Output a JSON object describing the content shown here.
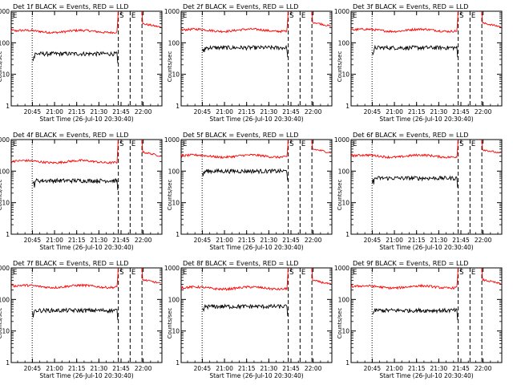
{
  "chart_data": [
    {
      "type": "line",
      "title": "Det 1f BLACK = Events, RED = LLD",
      "xlabel": "Start Time (26-Jul-10 20:30:40)",
      "ylabel": "Counts/sec",
      "ylim": [
        1,
        1000
      ],
      "y_scale": "log",
      "x_tick_labels": [
        "20:45",
        "21:00",
        "21:15",
        "21:30",
        "21:45",
        "22:00"
      ],
      "y_tick_labels": [
        "1",
        "10",
        "100",
        "1000"
      ],
      "markers": [
        "E",
        "S",
        "E"
      ],
      "series": [
        {
          "name": "LLD",
          "color": "#ff0000",
          "level": 230,
          "tail": [
            400,
            310
          ]
        },
        {
          "name": "Events",
          "color": "#000000",
          "level": 45
        }
      ]
    },
    {
      "type": "line",
      "title": "Det 2f BLACK = Events, RED = LLD",
      "xlabel": "Start Time (26-Jul-10 20:30:40)",
      "ylabel": "Counts/sec",
      "ylim": [
        1,
        1000
      ],
      "y_scale": "log",
      "x_tick_labels": [
        "20:45",
        "21:00",
        "21:15",
        "21:30",
        "21:45",
        "22:00"
      ],
      "y_tick_labels": [
        "1",
        "10",
        "100",
        "1000"
      ],
      "markers": [
        "E",
        "S",
        "E"
      ],
      "series": [
        {
          "name": "LLD",
          "color": "#ff0000",
          "level": 250,
          "tail": [
            450,
            330
          ]
        },
        {
          "name": "Events",
          "color": "#000000",
          "level": 70
        }
      ]
    },
    {
      "type": "line",
      "title": "Det 3f BLACK = Events, RED = LLD",
      "xlabel": "Start Time (26-Jul-10 20:30:40)",
      "ylabel": "Counts/sec",
      "ylim": [
        1,
        1000
      ],
      "y_scale": "log",
      "x_tick_labels": [
        "20:45",
        "21:00",
        "21:15",
        "21:30",
        "21:45",
        "22:00"
      ],
      "y_tick_labels": [
        "1",
        "10",
        "100",
        "1000"
      ],
      "markers": [
        "E",
        "S",
        "E"
      ],
      "series": [
        {
          "name": "LLD",
          "color": "#ff0000",
          "level": 250,
          "tail": [
            420,
            320
          ]
        },
        {
          "name": "Events",
          "color": "#000000",
          "level": 70
        }
      ]
    },
    {
      "type": "line",
      "title": "Det 4f BLACK = Events, RED = LLD",
      "xlabel": "Start Time (26-Jul-10 20:30:40)",
      "ylabel": "Counts/sec",
      "ylim": [
        1,
        1000
      ],
      "y_scale": "log",
      "x_tick_labels": [
        "20:45",
        "21:00",
        "21:15",
        "21:30",
        "21:45",
        "22:00"
      ],
      "y_tick_labels": [
        "1",
        "10",
        "100",
        "1000"
      ],
      "markers": [
        "E",
        "S",
        "E"
      ],
      "series": [
        {
          "name": "LLD",
          "color": "#ff0000",
          "level": 200,
          "tail": [
            400,
            300
          ]
        },
        {
          "name": "Events",
          "color": "#000000",
          "level": 50
        }
      ]
    },
    {
      "type": "line",
      "title": "Det 5f BLACK = Events, RED = LLD",
      "xlabel": "Start Time (26-Jul-10 20:30:40)",
      "ylabel": "Counts/sec",
      "ylim": [
        1,
        1000
      ],
      "y_scale": "log",
      "x_tick_labels": [
        "20:45",
        "21:00",
        "21:15",
        "21:30",
        "21:45",
        "22:00"
      ],
      "y_tick_labels": [
        "1",
        "10",
        "100",
        "1000"
      ],
      "markers": [
        "E",
        "S",
        "E"
      ],
      "series": [
        {
          "name": "LLD",
          "color": "#ff0000",
          "level": 300,
          "tail": [
            500,
            380
          ]
        },
        {
          "name": "Events",
          "color": "#000000",
          "level": 100
        }
      ]
    },
    {
      "type": "line",
      "title": "Det 6f BLACK = Events, RED = LLD",
      "xlabel": "Start Time (26-Jul-10 20:30:40)",
      "ylabel": "Counts/sec",
      "ylim": [
        1,
        1000
      ],
      "y_scale": "log",
      "x_tick_labels": [
        "20:45",
        "21:00",
        "21:15",
        "21:30",
        "21:45",
        "22:00"
      ],
      "y_tick_labels": [
        "1",
        "10",
        "100",
        "1000"
      ],
      "markers": [
        "E",
        "S",
        "E"
      ],
      "series": [
        {
          "name": "LLD",
          "color": "#ff0000",
          "level": 300,
          "tail": [
            480,
            360
          ]
        },
        {
          "name": "Events",
          "color": "#000000",
          "level": 60
        }
      ]
    },
    {
      "type": "line",
      "title": "Det 7f BLACK = Events, RED = LLD",
      "xlabel": "Start Time (26-Jul-10 20:30:40)",
      "ylabel": "Counts/sec",
      "ylim": [
        1,
        1000
      ],
      "y_scale": "log",
      "x_tick_labels": [
        "20:45",
        "21:00",
        "21:15",
        "21:30",
        "21:45",
        "22:00"
      ],
      "y_tick_labels": [
        "1",
        "10",
        "100",
        "1000"
      ],
      "markers": [
        "E",
        "S",
        "E"
      ],
      "series": [
        {
          "name": "LLD",
          "color": "#ff0000",
          "level": 260,
          "tail": [
            420,
            320
          ]
        },
        {
          "name": "Events",
          "color": "#000000",
          "level": 45
        }
      ]
    },
    {
      "type": "line",
      "title": "Det 8f BLACK = Events, RED = LLD",
      "xlabel": "Start Time (26-Jul-10 20:30:40)",
      "ylabel": "Counts/sec",
      "ylim": [
        1,
        1000
      ],
      "y_scale": "log",
      "x_tick_labels": [
        "20:45",
        "21:00",
        "21:15",
        "21:30",
        "21:45",
        "22:00"
      ],
      "y_tick_labels": [
        "1",
        "10",
        "100",
        "1000"
      ],
      "markers": [
        "E",
        "S",
        "E"
      ],
      "series": [
        {
          "name": "LLD",
          "color": "#ff0000",
          "level": 230,
          "tail": [
            400,
            300
          ]
        },
        {
          "name": "Events",
          "color": "#000000",
          "level": 60
        }
      ]
    },
    {
      "type": "line",
      "title": "Det 9f BLACK = Events, RED = LLD",
      "xlabel": "Start Time (26-Jul-10 20:30:40)",
      "ylabel": "Counts/sec",
      "ylim": [
        1,
        1000
      ],
      "y_scale": "log",
      "x_tick_labels": [
        "20:45",
        "21:00",
        "21:15",
        "21:30",
        "21:45",
        "22:00"
      ],
      "y_tick_labels": [
        "1",
        "10",
        "100",
        "1000"
      ],
      "markers": [
        "E",
        "S",
        "E"
      ],
      "series": [
        {
          "name": "LLD",
          "color": "#ff0000",
          "level": 250,
          "tail": [
            420,
            310
          ]
        },
        {
          "name": "Events",
          "color": "#000000",
          "level": 45
        }
      ]
    }
  ]
}
